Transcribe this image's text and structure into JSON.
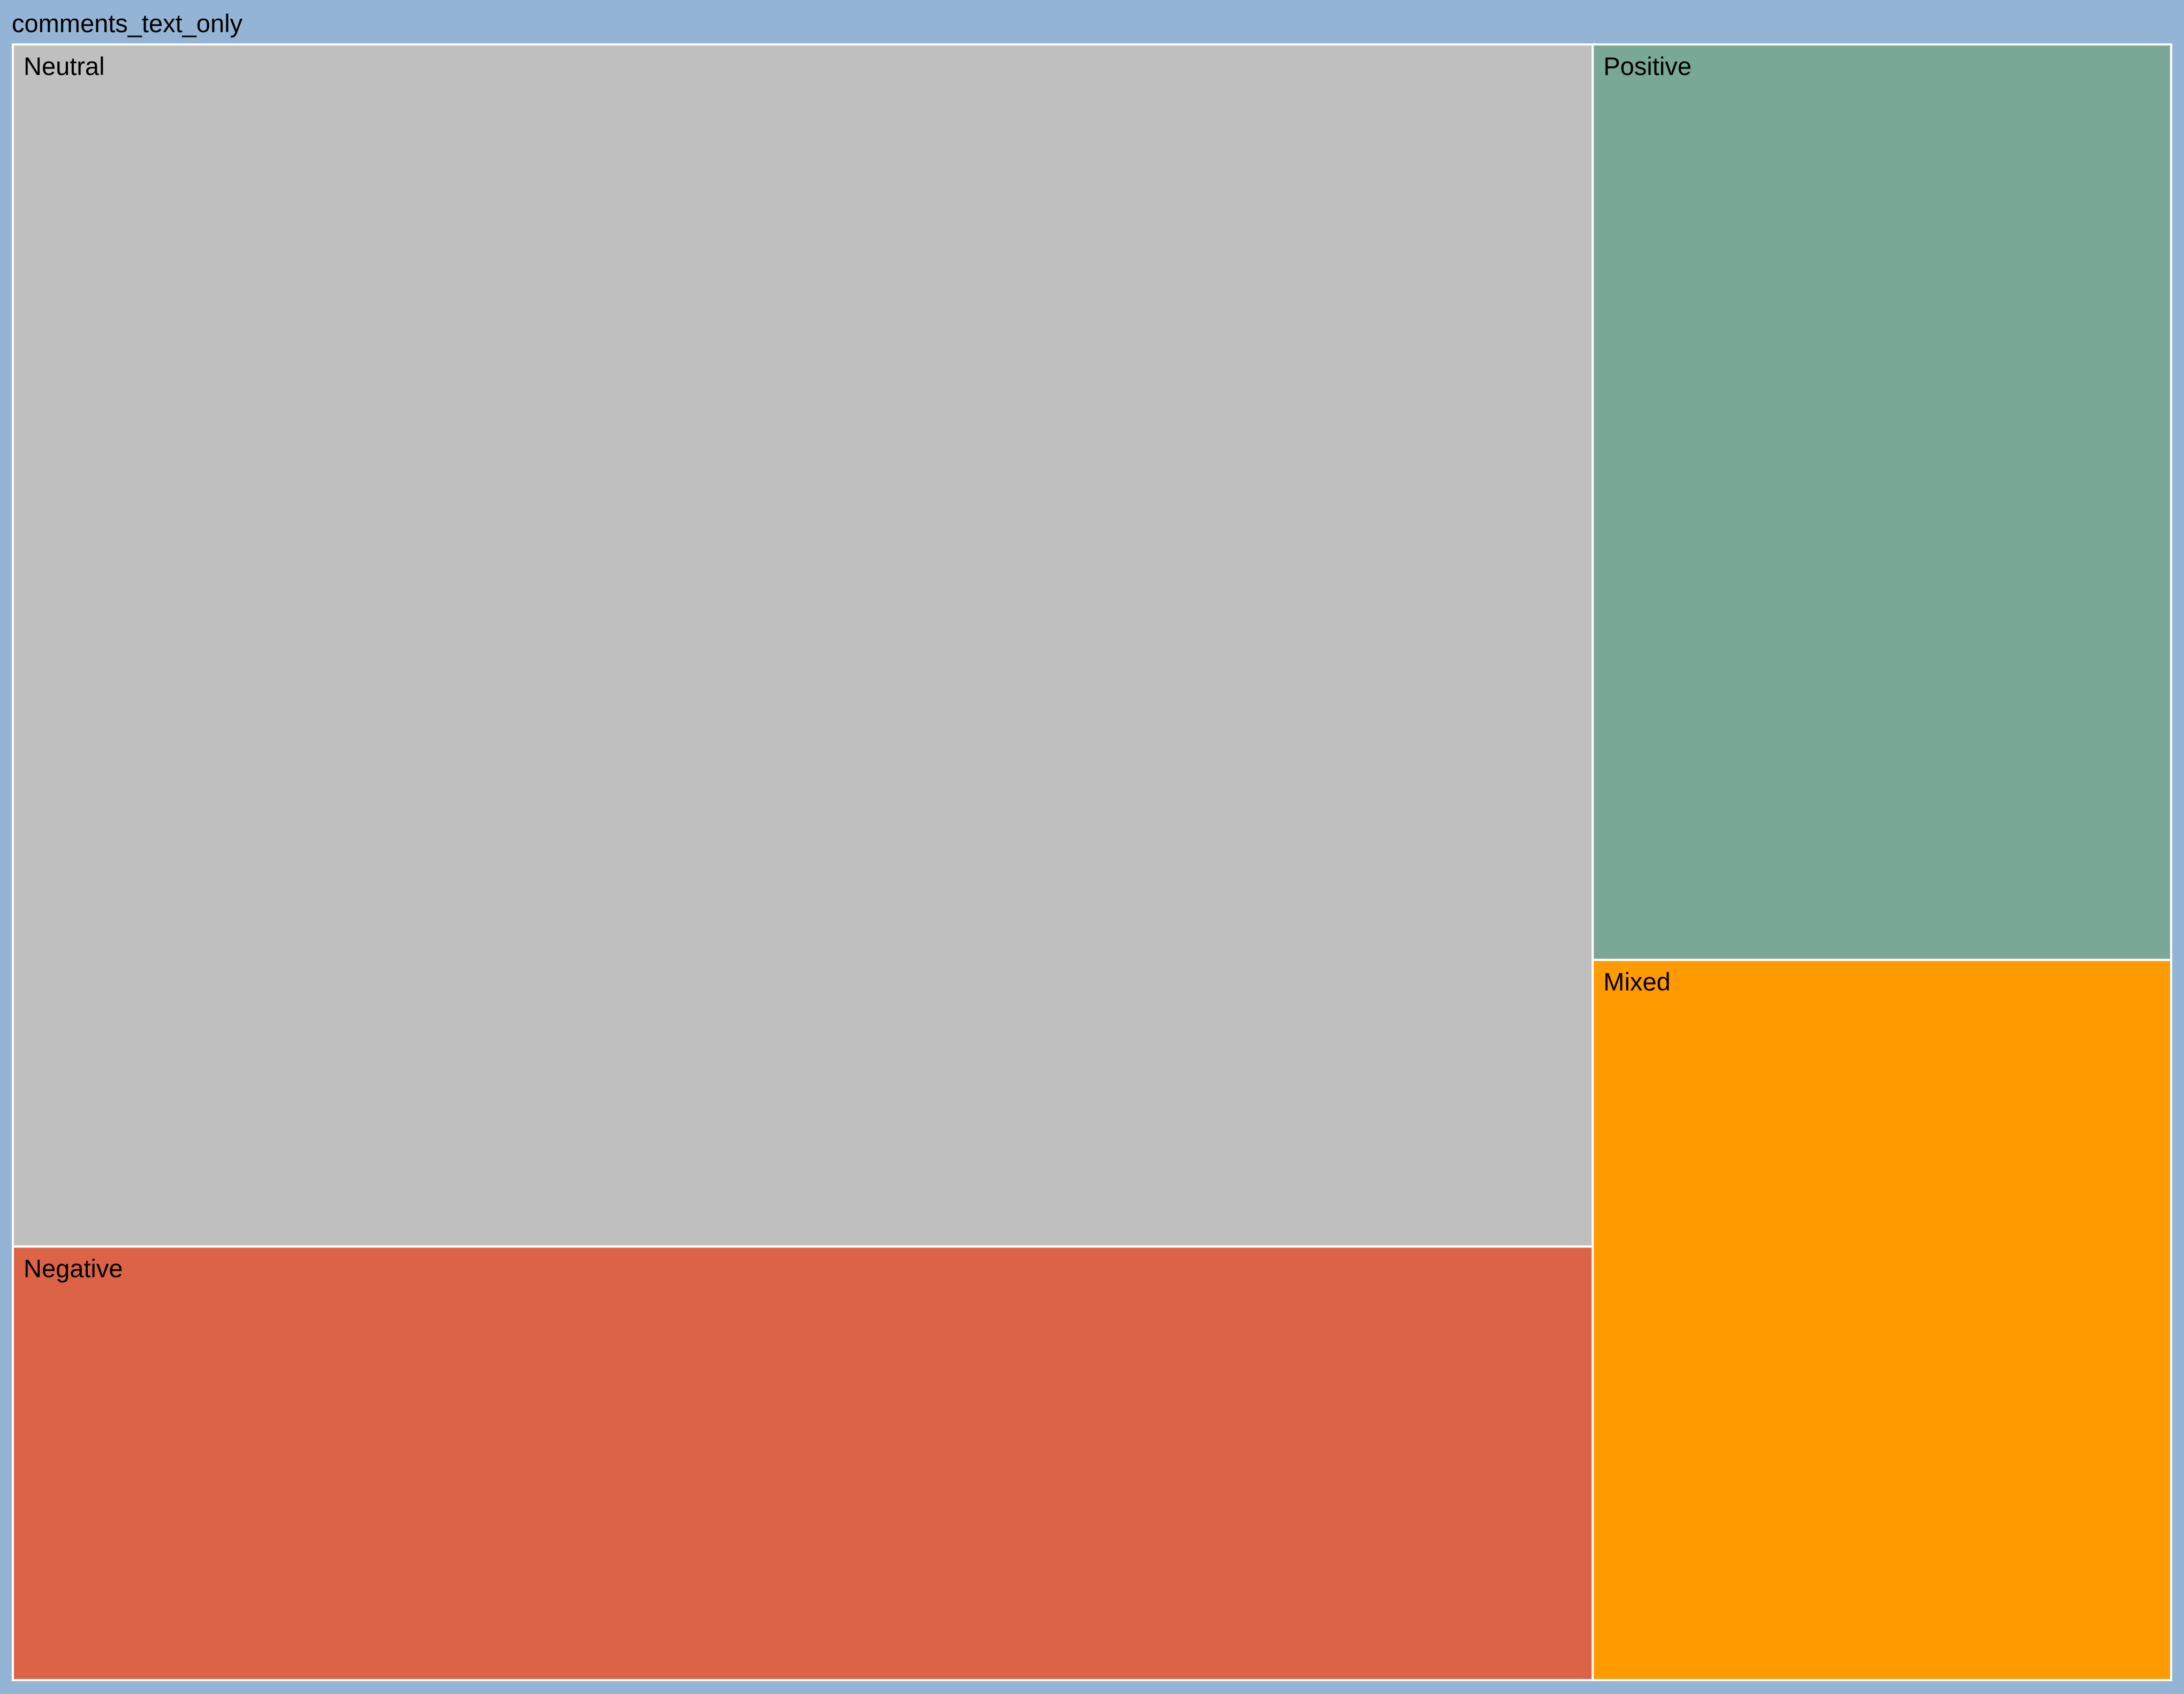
{
  "chart_data": {
    "type": "treemap",
    "title": "",
    "root": {
      "label": "comments_text_only",
      "color": "#93b4d4"
    },
    "series": [
      {
        "name": "Neutral",
        "value": 0.538,
        "color": "#bfbfbf"
      },
      {
        "name": "Negative",
        "value": 0.194,
        "color": "#dd6346"
      },
      {
        "name": "Positive",
        "value": 0.15,
        "color": "#79a897"
      },
      {
        "name": "Mixed",
        "value": 0.118,
        "color": "#ff9a00"
      }
    ],
    "legend": "none",
    "grid": false
  }
}
